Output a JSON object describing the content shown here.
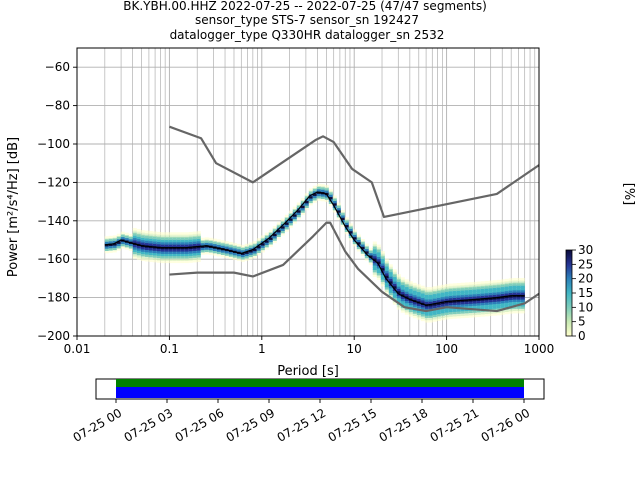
{
  "title": {
    "line1": "BK.YBH.00.HHZ   2022-07-25 -- 2022-07-25  (47/47 segments)",
    "line2": "sensor_type STS-7 sensor_sn 192427",
    "line3": "datalogger_type Q330HR datalogger_sn 2532"
  },
  "chart_data": {
    "type": "heatmap",
    "xlabel": "Period [s]",
    "ylabel": "Power [m²/s⁴/Hz] [dB]",
    "xscale": "log",
    "xlim": [
      0.01,
      1000
    ],
    "ylim": [
      -200,
      -50
    ],
    "xticks": [
      0.01,
      0.1,
      1,
      10,
      100,
      1000
    ],
    "xtick_labels": [
      "0.01",
      "0.1",
      "1",
      "10",
      "100",
      "1000"
    ],
    "yticks": [
      -200,
      -180,
      -160,
      -140,
      -120,
      -100,
      -80,
      -60
    ],
    "ytick_labels": [
      "−200",
      "−180",
      "−160",
      "−140",
      "−120",
      "−100",
      "−80",
      "−60"
    ],
    "grid": true,
    "noise_models": {
      "high": [
        [
          0.1,
          -91
        ],
        [
          0.22,
          -97
        ],
        [
          0.32,
          -110
        ],
        [
          0.8,
          -120
        ],
        [
          3.8,
          -98
        ],
        [
          4.6,
          -96
        ],
        [
          6,
          -99
        ],
        [
          9.5,
          -113
        ],
        [
          15.5,
          -120
        ],
        [
          21,
          -138
        ],
        [
          350,
          -126
        ],
        [
          1000,
          -111
        ]
      ],
      "low": [
        [
          0.1,
          -168
        ],
        [
          0.2,
          -167
        ],
        [
          0.5,
          -167
        ],
        [
          0.8,
          -169
        ],
        [
          1.7,
          -163
        ],
        [
          3.6,
          -148
        ],
        [
          5,
          -141
        ],
        [
          5.5,
          -141
        ],
        [
          8,
          -156
        ],
        [
          11,
          -165
        ],
        [
          20,
          -177
        ],
        [
          35,
          -185
        ],
        [
          60,
          -187
        ],
        [
          100,
          -185
        ],
        [
          350,
          -187
        ],
        [
          700,
          -183
        ],
        [
          1000,
          -178
        ]
      ]
    },
    "mean_curve": [
      [
        0.02,
        -152.5
      ],
      [
        0.025,
        -152
      ],
      [
        0.03,
        -150
      ],
      [
        0.035,
        -151
      ],
      [
        0.05,
        -153
      ],
      [
        0.08,
        -154
      ],
      [
        0.15,
        -154
      ],
      [
        0.25,
        -153
      ],
      [
        0.4,
        -155
      ],
      [
        0.6,
        -157
      ],
      [
        0.8,
        -155
      ],
      [
        1.2,
        -149
      ],
      [
        1.8,
        -141
      ],
      [
        2.5,
        -134
      ],
      [
        3.3,
        -127
      ],
      [
        4,
        -125
      ],
      [
        5,
        -126
      ],
      [
        6,
        -132
      ],
      [
        8,
        -143
      ],
      [
        10,
        -150
      ],
      [
        14,
        -158
      ],
      [
        18,
        -162
      ],
      [
        22,
        -170
      ],
      [
        30,
        -178
      ],
      [
        40,
        -181
      ],
      [
        60,
        -184
      ],
      [
        100,
        -182
      ],
      [
        200,
        -181
      ],
      [
        350,
        -180
      ],
      [
        500,
        -179
      ],
      [
        700,
        -179
      ]
    ],
    "colorbar": {
      "label": "[%]",
      "ticks": [
        0,
        5,
        10,
        15,
        20,
        25,
        30
      ],
      "colors": [
        "#ffffcc",
        "#c7e9b4",
        "#7fcdbb",
        "#41b6c4",
        "#2c7fb8",
        "#253494",
        "#0b0b3b"
      ]
    }
  },
  "timeline": {
    "labels": [
      "07-25 00",
      "07-25 03",
      "07-25 06",
      "07-25 09",
      "07-25 12",
      "07-25 15",
      "07-25 18",
      "07-25 21",
      "07-26 00"
    ],
    "data_color": "#0000ff",
    "gaps_color": "#008000"
  },
  "colors": {
    "noise_model": "#666666",
    "mean": "#000000",
    "grid": "#b0b0b0"
  }
}
